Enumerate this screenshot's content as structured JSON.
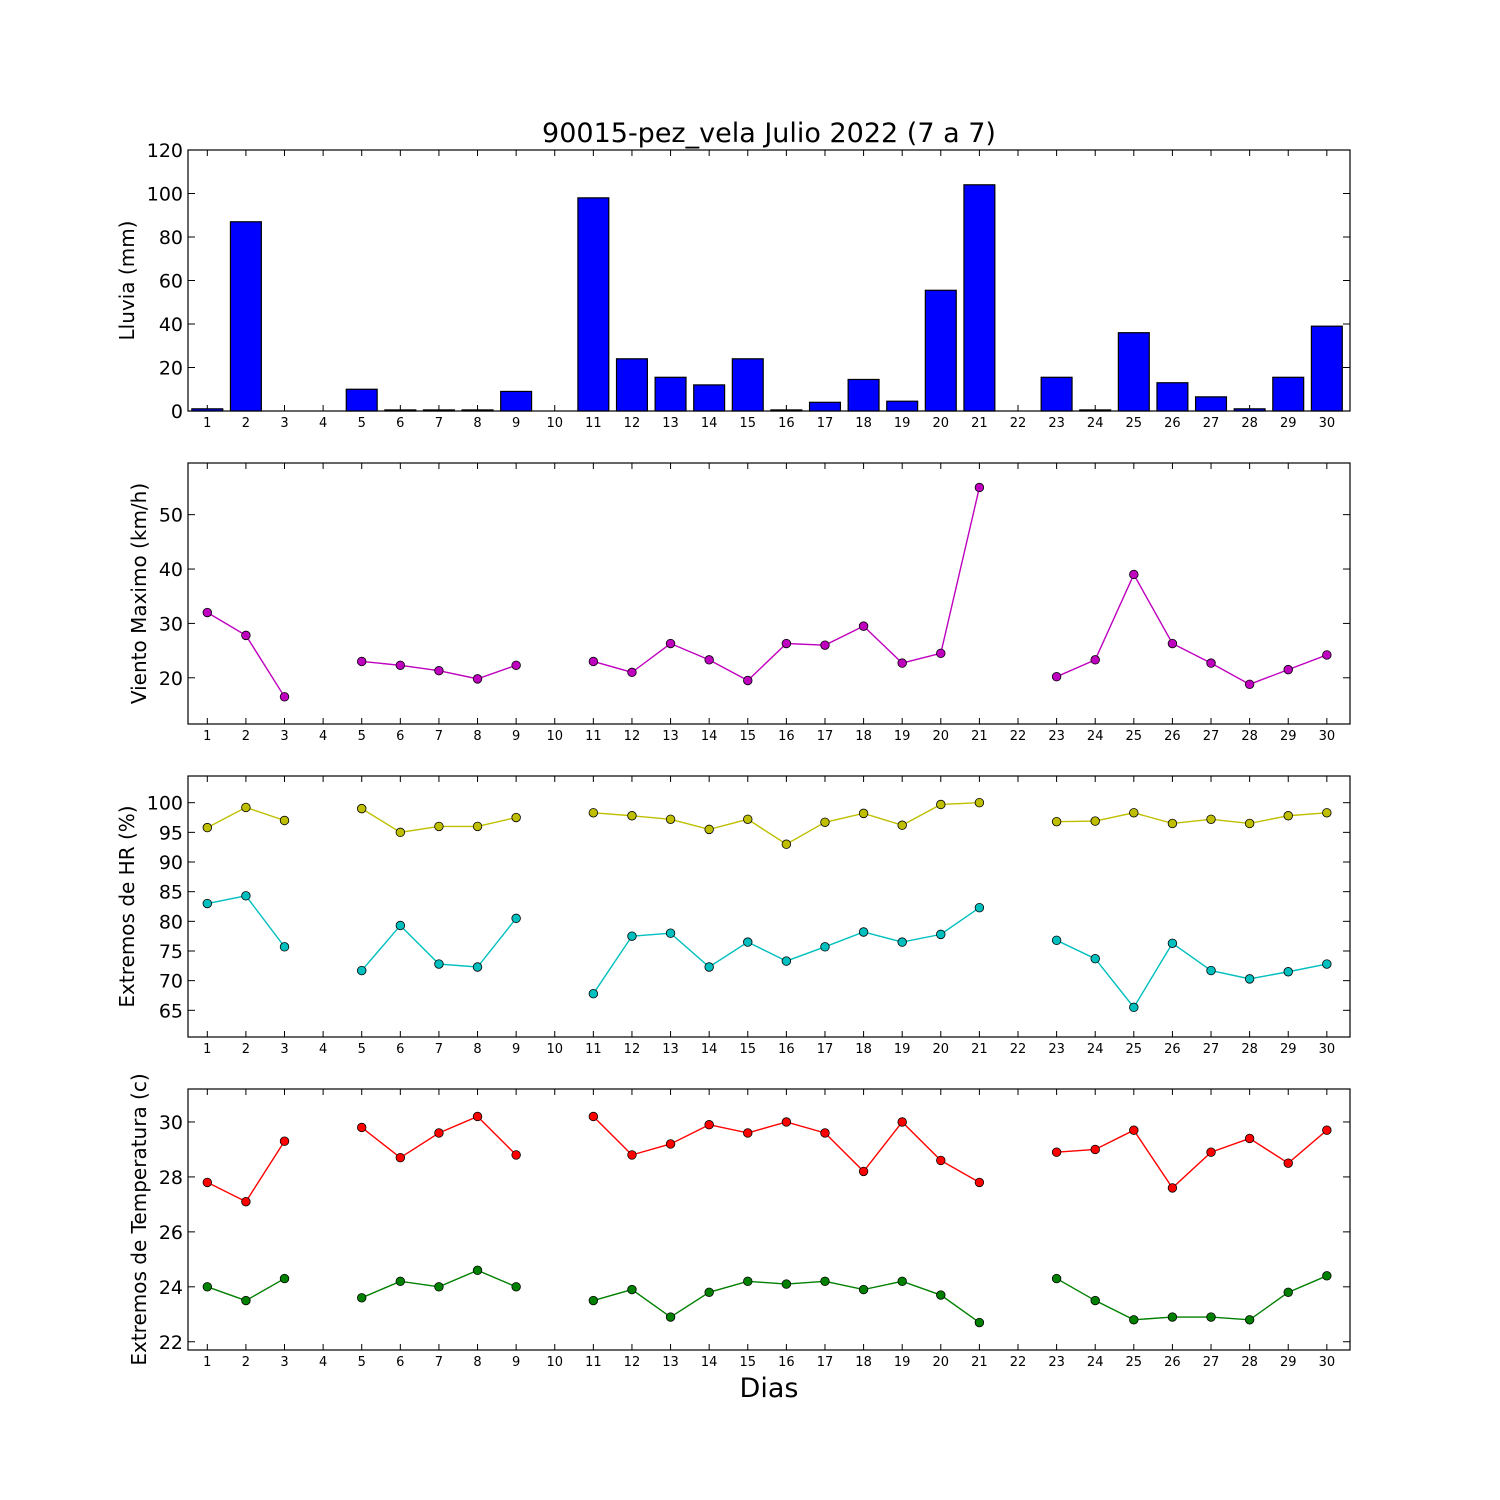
{
  "chart_data": {
    "title": "90015-pez_vela Julio 2022  (7 a 7)",
    "xlabel": "Dias",
    "x": [
      1,
      2,
      3,
      4,
      5,
      6,
      7,
      8,
      9,
      10,
      11,
      12,
      13,
      14,
      15,
      16,
      17,
      18,
      19,
      20,
      21,
      22,
      23,
      24,
      25,
      26,
      27,
      28,
      29,
      30
    ],
    "panels": [
      {
        "id": "lluvia",
        "type": "bar",
        "ylabel": "Lluvia (mm)",
        "ylim": [
          0,
          120
        ],
        "yticks": [
          0,
          20,
          40,
          60,
          80,
          100,
          120
        ],
        "series": [
          {
            "color": "#0000ff",
            "values": [
              1,
              87,
              0,
              0,
              10,
              0.5,
              0.5,
              0.5,
              9,
              0,
              98,
              24,
              15.5,
              12,
              24,
              0.5,
              4,
              14.5,
              4.5,
              55.5,
              104,
              0,
              15.5,
              0.5,
              36,
              13,
              6.5,
              1,
              15.5,
              39
            ]
          }
        ]
      },
      {
        "id": "viento",
        "type": "line",
        "ylabel": "Viento Maximo (km/h)",
        "ylim": [
          11.5,
          59.5
        ],
        "yticks": [
          20,
          30,
          40,
          50
        ],
        "series": [
          {
            "color": "#bf00bf",
            "values": [
              32,
              27.8,
              16.5,
              null,
              23,
              22.3,
              21.3,
              19.8,
              22.3,
              null,
              23,
              21,
              26.3,
              23.3,
              19.5,
              26.3,
              26,
              29.5,
              22.7,
              24.5,
              55,
              null,
              20.2,
              23.3,
              39,
              26.3,
              22.7,
              18.8,
              21.5,
              24.2
            ]
          }
        ]
      },
      {
        "id": "hr",
        "type": "line",
        "ylabel": "Extremos de HR (%)",
        "ylim": [
          60.5,
          104.5
        ],
        "yticks": [
          65,
          70,
          75,
          80,
          85,
          90,
          95,
          100
        ],
        "series": [
          {
            "color": "#bfbf00",
            "values": [
              95.8,
              99.2,
              97,
              null,
              99,
              95,
              96,
              96,
              97.5,
              null,
              98.3,
              97.8,
              97.2,
              95.5,
              97.2,
              93,
              96.7,
              98.2,
              96.2,
              99.7,
              100,
              null,
              96.8,
              96.9,
              98.3,
              96.5,
              97.2,
              96.5,
              97.8,
              98.3
            ]
          },
          {
            "color": "#00bfbf",
            "values": [
              83,
              84.3,
              75.7,
              null,
              71.7,
              79.3,
              72.8,
              72.3,
              80.5,
              null,
              67.8,
              77.5,
              78,
              72.3,
              76.5,
              73.3,
              75.7,
              78.2,
              76.5,
              77.8,
              82.3,
              null,
              76.8,
              73.7,
              65.5,
              76.3,
              71.7,
              70.3,
              71.5,
              72.8
            ]
          }
        ]
      },
      {
        "id": "temp",
        "type": "line",
        "ylabel": "Extremos de Temperatura (c)",
        "ylim": [
          21.7,
          31.2
        ],
        "yticks": [
          22,
          24,
          26,
          28,
          30
        ],
        "series": [
          {
            "color": "#ff0000",
            "values": [
              27.8,
              27.1,
              29.3,
              null,
              29.8,
              28.7,
              29.6,
              30.2,
              28.8,
              null,
              30.2,
              28.8,
              29.2,
              29.9,
              29.6,
              30,
              29.6,
              28.2,
              30,
              28.6,
              27.8,
              null,
              28.9,
              29,
              29.7,
              27.6,
              28.9,
              29.4,
              28.5,
              29.7
            ]
          },
          {
            "color": "#008000",
            "values": [
              24,
              23.5,
              24.3,
              null,
              23.6,
              24.2,
              24,
              24.6,
              24,
              null,
              23.5,
              23.9,
              22.9,
              23.8,
              24.2,
              24.1,
              24.2,
              23.9,
              24.2,
              23.7,
              22.7,
              null,
              24.3,
              23.5,
              22.8,
              22.9,
              22.9,
              22.8,
              23.8,
              24.4
            ]
          }
        ]
      }
    ]
  }
}
